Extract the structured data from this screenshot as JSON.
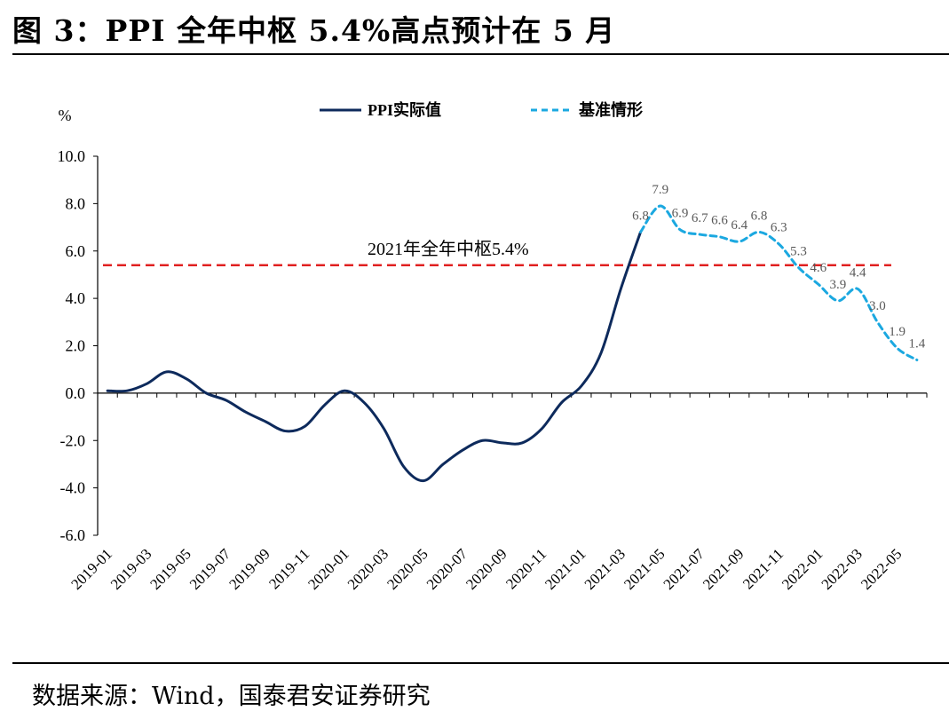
{
  "header": {
    "title": "图 3：PPI 全年中枢 5.4%高点预计在 5 月"
  },
  "footer": {
    "source": "数据来源：Wind，国泰君安证券研究"
  },
  "chart_data": {
    "type": "line",
    "yunit": "%",
    "ylim": [
      -6.0,
      10.0
    ],
    "yticks": [
      "10.0",
      "8.0",
      "6.0",
      "4.0",
      "2.0",
      "0.0",
      "-2.0",
      "-4.0",
      "-6.0"
    ],
    "ytick_values": [
      10,
      8,
      6,
      4,
      2,
      0,
      -2,
      -4,
      -6
    ],
    "xtick_labels": [
      "2019-01",
      "2019-03",
      "2019-05",
      "2019-07",
      "2019-09",
      "2019-11",
      "2020-01",
      "2020-03",
      "2020-05",
      "2020-07",
      "2020-09",
      "2020-11",
      "2021-01",
      "2021-03",
      "2021-05",
      "2021-07",
      "2021-09",
      "2021-11",
      "2022-01",
      "2022-03",
      "2022-05"
    ],
    "legend_position": "top",
    "grid": false,
    "series": [
      {
        "name": "PPI实际值",
        "color": "#0d2a5c",
        "style": "solid",
        "x": [
          "2019-01",
          "2019-02",
          "2019-03",
          "2019-04",
          "2019-05",
          "2019-06",
          "2019-07",
          "2019-08",
          "2019-09",
          "2019-10",
          "2019-11",
          "2019-12",
          "2020-01",
          "2020-02",
          "2020-03",
          "2020-04",
          "2020-05",
          "2020-06",
          "2020-07",
          "2020-08",
          "2020-09",
          "2020-10",
          "2020-11",
          "2020-12",
          "2021-01",
          "2021-02",
          "2021-03",
          "2021-04"
        ],
        "values": [
          0.1,
          0.1,
          0.4,
          0.9,
          0.6,
          0.0,
          -0.3,
          -0.8,
          -1.2,
          -1.6,
          -1.4,
          -0.5,
          0.1,
          -0.4,
          -1.5,
          -3.1,
          -3.7,
          -3.0,
          -2.4,
          -2.0,
          -2.1,
          -2.1,
          -1.5,
          -0.4,
          0.3,
          1.7,
          4.4,
          6.8
        ]
      },
      {
        "name": "基准情形",
        "color": "#1ba8e0",
        "style": "dashed",
        "x": [
          "2021-04",
          "2021-05",
          "2021-06",
          "2021-07",
          "2021-08",
          "2021-09",
          "2021-10",
          "2021-11",
          "2021-12",
          "2022-01",
          "2022-02",
          "2022-03",
          "2022-04",
          "2022-05",
          "2022-06"
        ],
        "values": [
          6.8,
          7.9,
          6.9,
          6.7,
          6.6,
          6.4,
          6.8,
          6.3,
          5.3,
          4.6,
          3.9,
          4.4,
          3.0,
          1.9,
          1.4
        ],
        "labels": [
          "6.8",
          "7.9",
          "6.9",
          "6.7",
          "6.6",
          "6.4",
          "6.8",
          "6.3",
          "5.3",
          "4.6",
          "3.9",
          "4.4",
          "3.0",
          "1.9",
          "1.4"
        ]
      }
    ],
    "reference_line": {
      "value": 5.4,
      "label": "2021年全年中枢5.4%",
      "color": "#e02020",
      "style": "dashed"
    }
  }
}
